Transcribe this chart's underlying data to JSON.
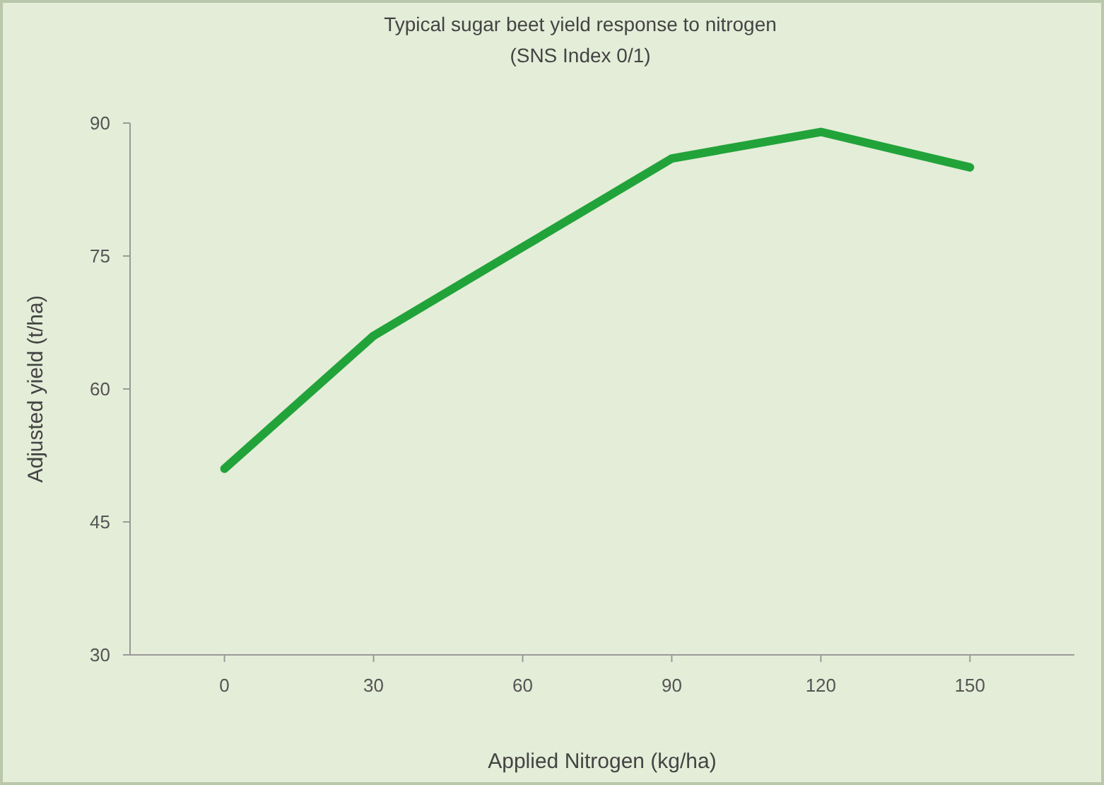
{
  "chart_data": {
    "type": "line",
    "title": "Typical sugar beet yield response to nitrogen",
    "subtitle": "(SNS Index 0/1)",
    "xlabel": "Applied Nitrogen (kg/ha)",
    "ylabel": "Adjusted  yield (t/ha)",
    "x": [
      0,
      30,
      60,
      75,
      90,
      105,
      120,
      150
    ],
    "series": [
      {
        "color": "#21a33a",
        "values": [
          51,
          66,
          76,
          81,
          86,
          87.5,
          89,
          85
        ]
      }
    ],
    "xlim": [
      -19,
      171
    ],
    "xticks": [
      0,
      30,
      60,
      90,
      120,
      150
    ],
    "ylim": [
      30,
      90
    ],
    "yticks": [
      30,
      45,
      60,
      75,
      90
    ],
    "grid": false,
    "marker": "none",
    "line_style": "solid"
  }
}
